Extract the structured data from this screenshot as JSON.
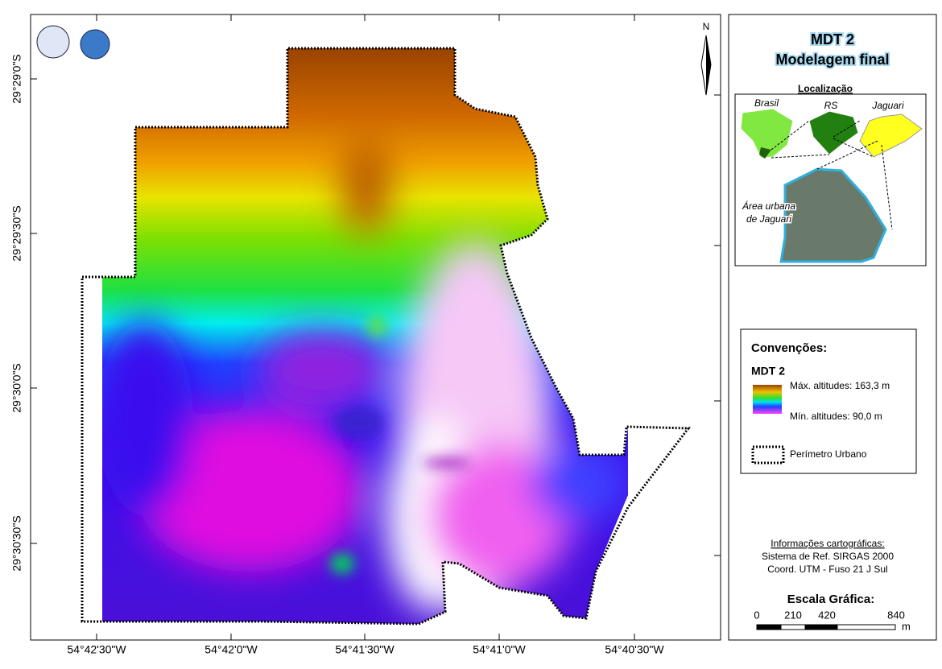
{
  "map": {
    "x_labels": [
      "54°42'30\"W",
      "54°42'0\"W",
      "54°41'30\"W",
      "54°41'0\"W",
      "54°40'30\"W"
    ],
    "y_labels": [
      "29°29'0\"S",
      "29°29'30\"S",
      "29°30'0\"S",
      "29°30'30\"S"
    ],
    "north": "N"
  },
  "title": {
    "line1": "MDT 2",
    "line2": "Modelagem final"
  },
  "location": {
    "title": "Localização",
    "brasil": "Brasil",
    "rs": "RS",
    "jaguari": "Jaguari",
    "urban_area": [
      "Área urbana",
      "de Jaguari"
    ]
  },
  "legend": {
    "title": "Convenções:",
    "layer": "MDT 2",
    "max": "Máx. altitudes: 163,3 m",
    "min": "Mín. altitudes: 90,0 m",
    "perimeter": "Perímetro Urbano"
  },
  "info": {
    "heading": "Informações cartográficas:",
    "lines": [
      "Sistema de Ref. SIRGAS 2000",
      "Coord. UTM - Fuso 21 J Sul"
    ]
  },
  "scale": {
    "title": "Escala Gráfica:",
    "labels": [
      "0",
      "210",
      "420",
      "840"
    ],
    "unit": "m"
  }
}
